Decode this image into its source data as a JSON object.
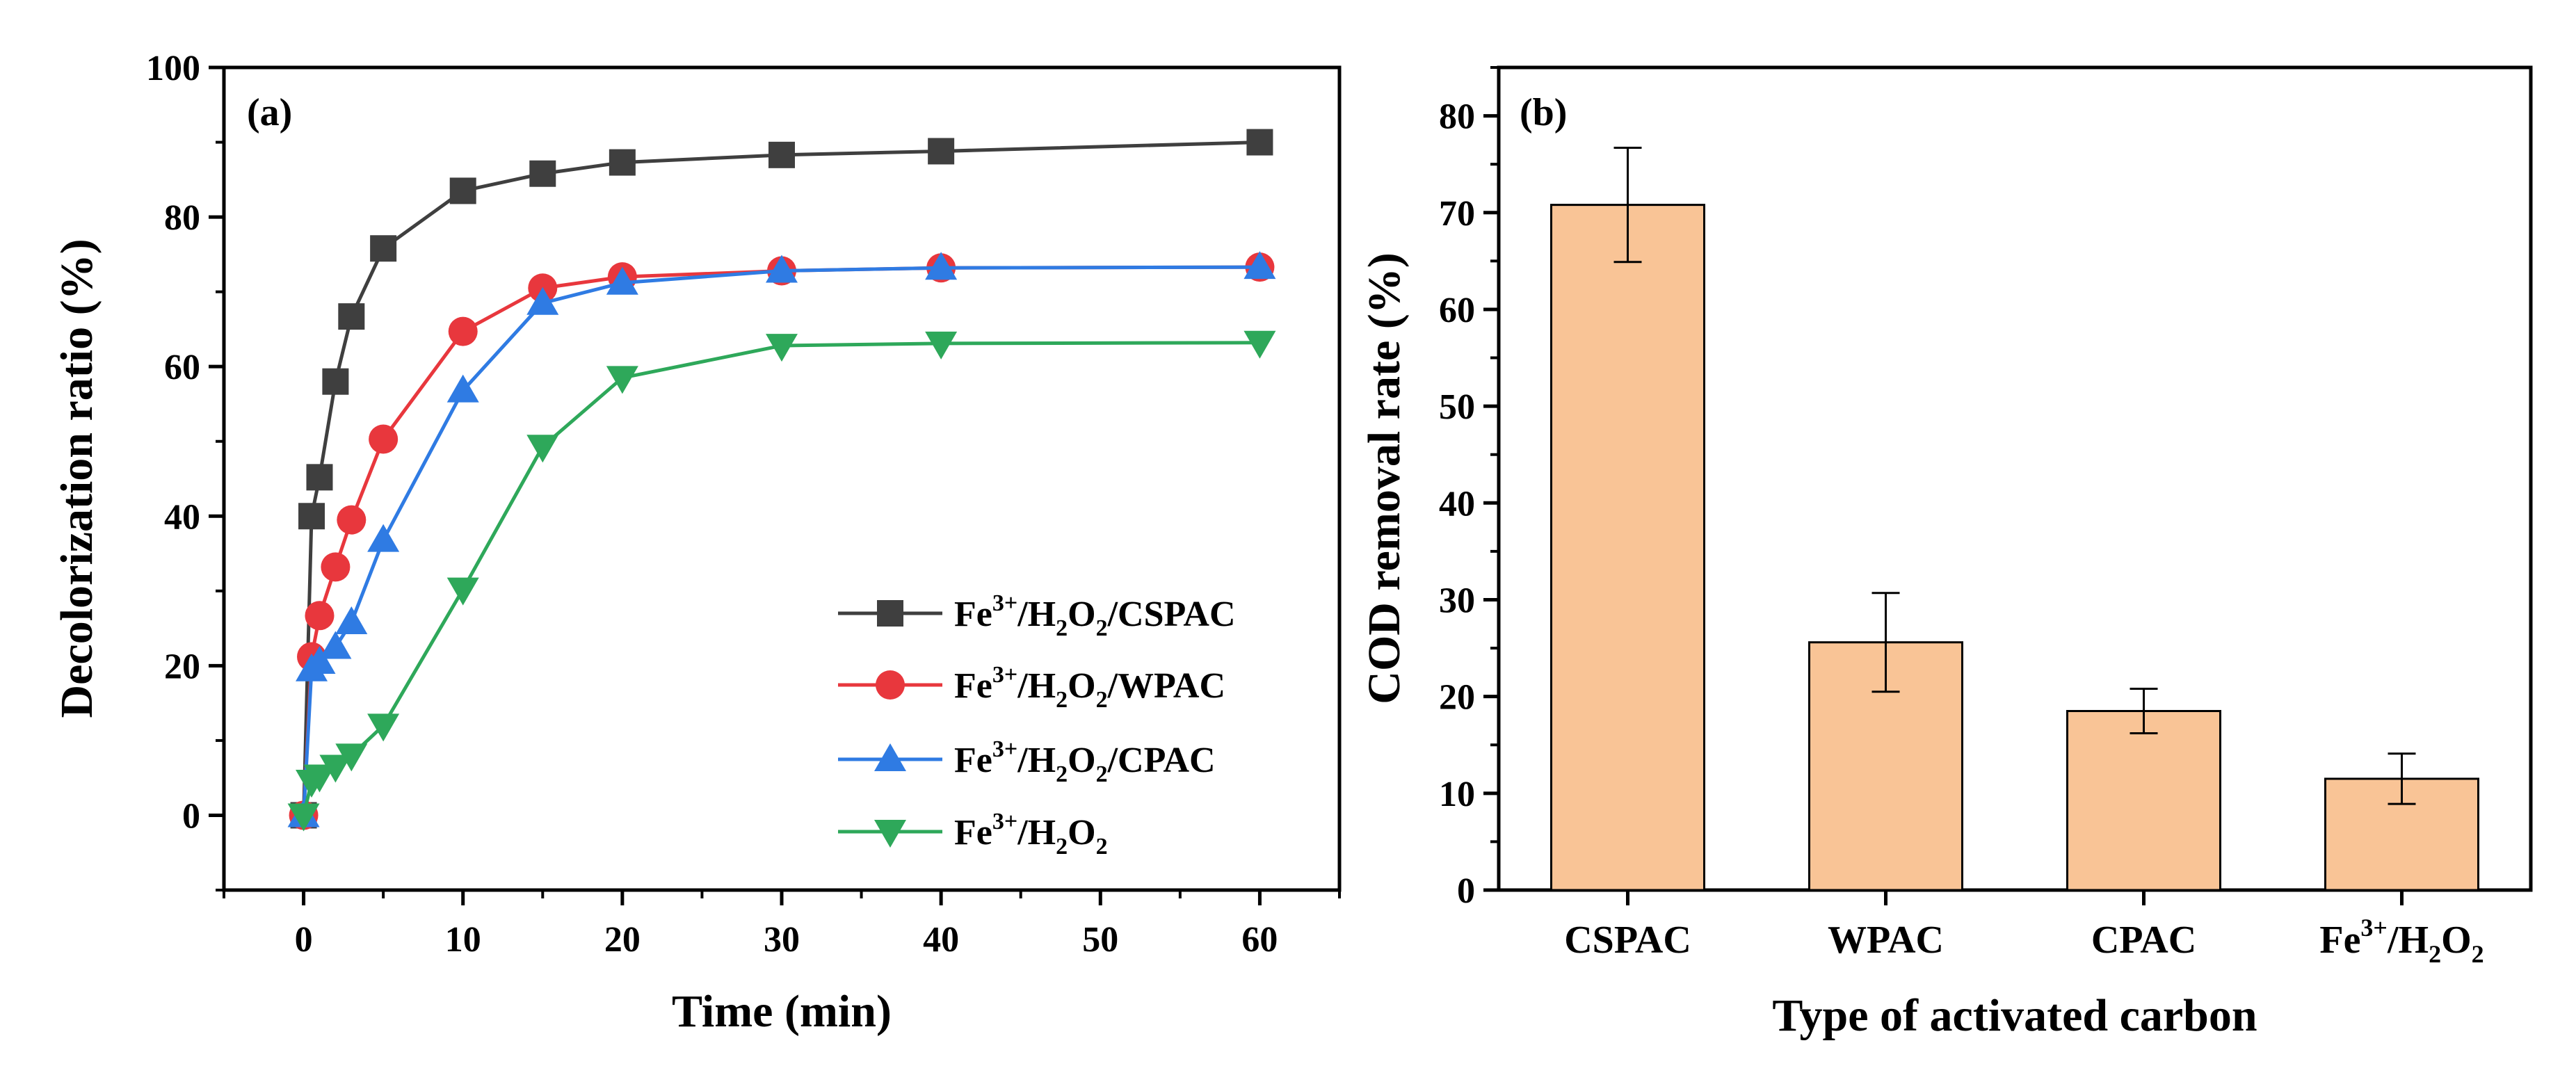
{
  "chart_data": [
    {
      "panel": "(a)",
      "type": "line",
      "title": "",
      "xlabel": "Time (min)",
      "ylabel": "Decolorization ratio (%)",
      "xlim": [
        -5,
        65
      ],
      "ylim": [
        -10,
        100
      ],
      "xticks": [
        "0",
        "10",
        "20",
        "30",
        "40",
        "50",
        "60"
      ],
      "yticks": [
        "0",
        "20",
        "40",
        "60",
        "80",
        "100"
      ],
      "x": [
        0,
        0.5,
        1,
        2,
        3,
        5,
        10,
        15,
        20,
        30,
        40,
        60
      ],
      "series": [
        {
          "name": "Fe3+/H2O2/CSPAC",
          "legend": {
            "a": "Fe",
            "b": "3+",
            "c": "/H",
            "d": "2",
            "e": "O",
            "f": "2",
            "g": "/CSPAC"
          },
          "color": "#3f3f3f",
          "marker": "square",
          "x": [
            0,
            0.5,
            1,
            2,
            3,
            5,
            10,
            15,
            20,
            30,
            40,
            60
          ],
          "values": [
            0,
            40,
            45.2,
            58,
            66.7,
            75.8,
            83.5,
            85.8,
            87.3,
            88.3,
            88.8,
            90
          ]
        },
        {
          "name": "Fe3+/H2O2/WPAC",
          "legend": {
            "a": "Fe",
            "b": "3+",
            "c": "/H",
            "d": "2",
            "e": "O",
            "f": "2",
            "g": "/WPAC"
          },
          "color": "#e8373d",
          "marker": "circle",
          "x": [
            0,
            0.5,
            1,
            2,
            3,
            5,
            10,
            15,
            20,
            30,
            40,
            60
          ],
          "values": [
            0,
            21.2,
            26.7,
            33.2,
            39.5,
            50.3,
            64.7,
            70.5,
            72,
            72.8,
            73.2,
            73.3
          ]
        },
        {
          "name": "Fe3+/H2O2/CPAC",
          "legend": {
            "a": "Fe",
            "b": "3+",
            "c": "/H",
            "d": "2",
            "e": "O",
            "f": "2",
            "g": "/CPAC"
          },
          "color": "#2f7be3",
          "marker": "triangle-up",
          "x": [
            0,
            0.5,
            1,
            2,
            3,
            5,
            10,
            15,
            20,
            30,
            40,
            60
          ],
          "values": [
            0,
            19.5,
            20.5,
            22.5,
            25.8,
            36.8,
            56.8,
            68.5,
            71.2,
            72.8,
            73.2,
            73.3
          ]
        },
        {
          "name": "Fe3+/H2O2",
          "legend": {
            "a": "Fe",
            "b": "3+",
            "c": "/H",
            "d": "2",
            "e": "O",
            "f": "2",
            "g": ""
          },
          "color": "#2ea85a",
          "marker": "triangle-down",
          "x": [
            0,
            0.5,
            1,
            2,
            3,
            5,
            10,
            15,
            20,
            30,
            40,
            60
          ],
          "values": [
            0,
            4.5,
            5.2,
            6.5,
            8,
            12,
            30.2,
            49.3,
            58.5,
            62.8,
            63.1,
            63.2
          ]
        }
      ],
      "legend_position": "bottom-right"
    },
    {
      "panel": "(b)",
      "type": "bar",
      "title": "",
      "xlabel": "Type of activated carbon",
      "ylabel": "COD removal rate (%)",
      "ylim": [
        0,
        85
      ],
      "yticks": [
        "0",
        "10",
        "20",
        "30",
        "40",
        "50",
        "60",
        "70",
        "80"
      ],
      "categories": [
        "CSPAC",
        "WPAC",
        "CPAC",
        "Fe3+/H2O2"
      ],
      "last_category": {
        "a": "Fe",
        "b": "3+",
        "c": "/H",
        "d": "2",
        "e": "O",
        "f": "2"
      },
      "values": [
        70.8,
        25.6,
        18.5,
        11.5
      ],
      "errors": [
        5.9,
        5.1,
        2.3,
        2.6
      ],
      "bar_color": "#f9c496",
      "edge_color": "#000000"
    }
  ]
}
